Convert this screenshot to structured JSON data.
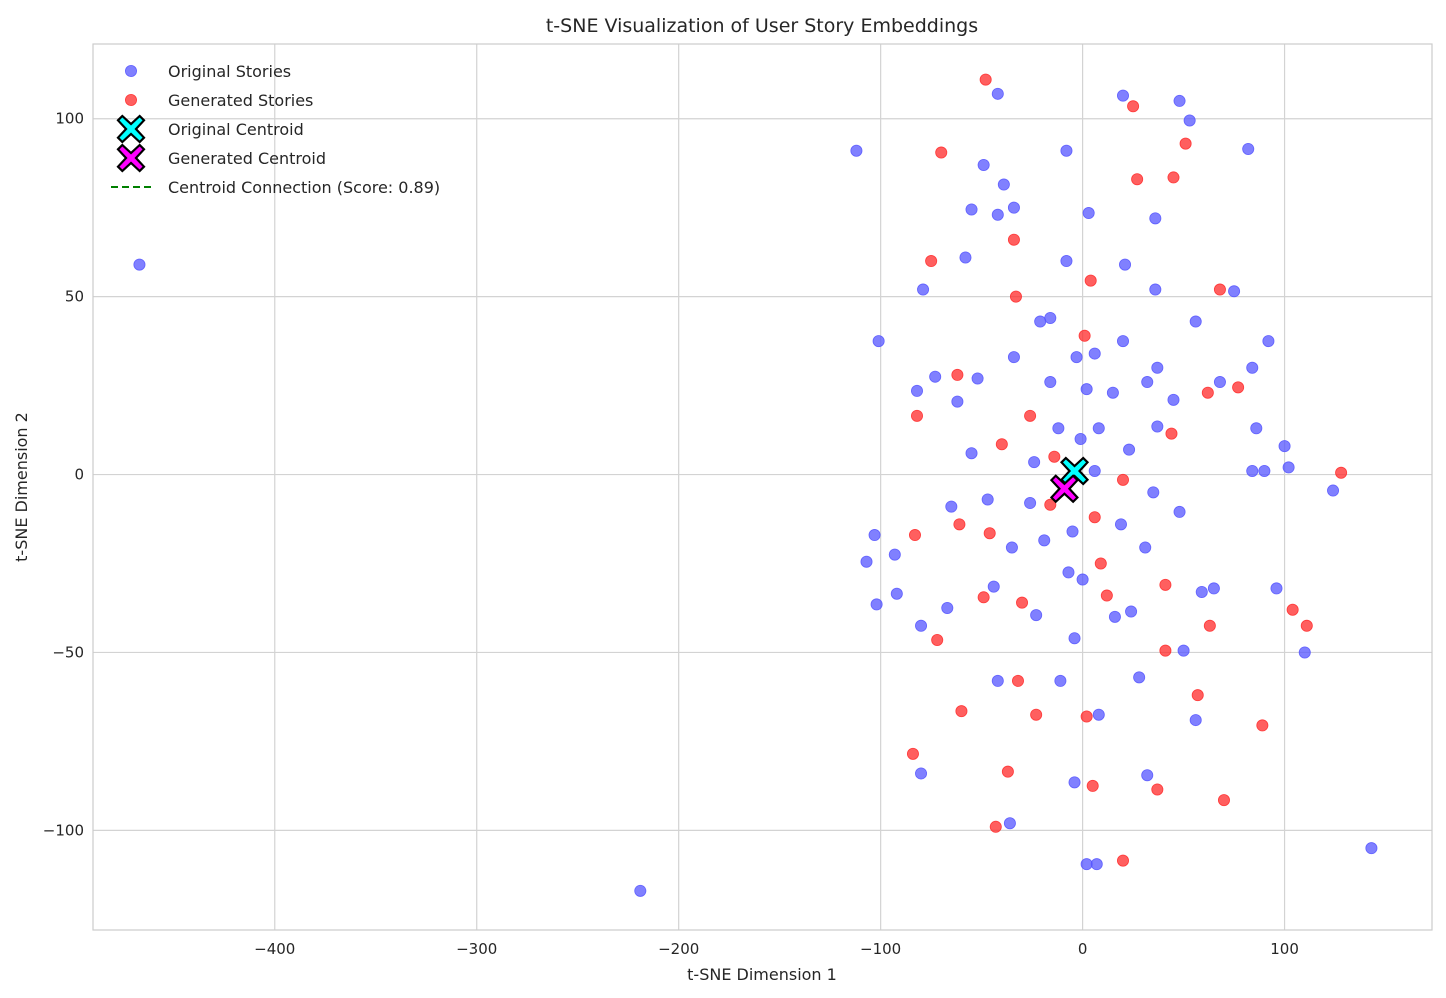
{
  "chart_data": {
    "type": "scatter",
    "title": "t-SNE Visualization of User Story Embeddings",
    "xlabel": "t-SNE Dimension 1",
    "ylabel": "t-SNE Dimension 2",
    "xlim": [
      -490,
      173
    ],
    "ylim": [
      -128,
      121
    ],
    "xticks": [
      -400,
      -300,
      -200,
      -100,
      0,
      100
    ],
    "yticks": [
      -100,
      -50,
      0,
      50,
      100
    ],
    "grid": true,
    "legend_position": "top-left",
    "series": [
      {
        "name": "Original Stories",
        "color": "#5555ff",
        "marker": "circle",
        "points": [
          [
            -467,
            59
          ],
          [
            -219,
            -117
          ],
          [
            -112,
            91
          ],
          [
            -101,
            37.5
          ],
          [
            -103,
            -17
          ],
          [
            -107,
            -24.5
          ],
          [
            -102,
            -36.5
          ],
          [
            -93,
            -22.5
          ],
          [
            -92,
            -33.5
          ],
          [
            -82,
            23.5
          ],
          [
            -79,
            52
          ],
          [
            -80,
            -42.5
          ],
          [
            -80,
            -84
          ],
          [
            -73,
            27.5
          ],
          [
            -67,
            -37.5
          ],
          [
            -65,
            -9
          ],
          [
            -62,
            20.5
          ],
          [
            -58,
            61
          ],
          [
            -55,
            74.5
          ],
          [
            -55,
            6
          ],
          [
            -52,
            27
          ],
          [
            -49,
            87
          ],
          [
            -47,
            -7
          ],
          [
            -44,
            -31.5
          ],
          [
            -42,
            107
          ],
          [
            -42,
            73
          ],
          [
            -42,
            -58
          ],
          [
            -39,
            81.5
          ],
          [
            -36,
            -98
          ],
          [
            -35,
            -20.5
          ],
          [
            -34,
            75
          ],
          [
            -34,
            33
          ],
          [
            -26,
            -8
          ],
          [
            -24,
            3.5
          ],
          [
            -23,
            -39.5
          ],
          [
            -21,
            43
          ],
          [
            -19,
            -18.5
          ],
          [
            -16,
            44
          ],
          [
            -16,
            26
          ],
          [
            -12,
            13
          ],
          [
            -11,
            -58
          ],
          [
            -8,
            91
          ],
          [
            -8,
            60
          ],
          [
            -7,
            -27.5
          ],
          [
            -5,
            -16
          ],
          [
            -4,
            -46
          ],
          [
            -4,
            -86.5
          ],
          [
            -3,
            33
          ],
          [
            -1,
            10
          ],
          [
            0,
            -29.5
          ],
          [
            2,
            24
          ],
          [
            2,
            -109.5
          ],
          [
            3,
            73.5
          ],
          [
            6,
            1
          ],
          [
            6,
            34
          ],
          [
            7,
            -109.5
          ],
          [
            8,
            13
          ],
          [
            8,
            -67.5
          ],
          [
            15,
            23
          ],
          [
            16,
            -40
          ],
          [
            20,
            106.5
          ],
          [
            19,
            -14
          ],
          [
            20,
            37.5
          ],
          [
            21,
            59
          ],
          [
            23,
            7
          ],
          [
            24,
            -38.5
          ],
          [
            28,
            -57
          ],
          [
            31,
            -20.5
          ],
          [
            32,
            26
          ],
          [
            32,
            -84.5
          ],
          [
            35,
            -5
          ],
          [
            36,
            72
          ],
          [
            36,
            52
          ],
          [
            37,
            13.5
          ],
          [
            37,
            30
          ],
          [
            45,
            21
          ],
          [
            48,
            105
          ],
          [
            48,
            -10.5
          ],
          [
            50,
            -49.5
          ],
          [
            53,
            99.5
          ],
          [
            56,
            43
          ],
          [
            56,
            -69
          ],
          [
            59,
            -33
          ],
          [
            65,
            -32
          ],
          [
            68,
            26
          ],
          [
            75,
            51.5
          ],
          [
            82,
            91.5
          ],
          [
            84,
            1
          ],
          [
            84,
            30
          ],
          [
            86,
            13
          ],
          [
            90,
            1
          ],
          [
            92,
            37.5
          ],
          [
            96,
            -32
          ],
          [
            100,
            8
          ],
          [
            102,
            2
          ],
          [
            110,
            -50
          ],
          [
            124,
            -4.5
          ],
          [
            143,
            -105
          ]
        ]
      },
      {
        "name": "Generated Stories",
        "color": "#ff2a2a",
        "marker": "circle",
        "points": [
          [
            -48,
            111
          ],
          [
            -70,
            90.5
          ],
          [
            -75,
            60
          ],
          [
            -82,
            16.5
          ],
          [
            -83,
            -17
          ],
          [
            -84,
            -78.5
          ],
          [
            -72,
            -46.5
          ],
          [
            -62,
            28
          ],
          [
            -61,
            -14
          ],
          [
            -60,
            -66.5
          ],
          [
            -49,
            -34.5
          ],
          [
            -46,
            -16.5
          ],
          [
            -43,
            -99
          ],
          [
            -40,
            8.5
          ],
          [
            -37,
            -83.5
          ],
          [
            -34,
            66
          ],
          [
            -33,
            50
          ],
          [
            -32,
            -58
          ],
          [
            -30,
            -36
          ],
          [
            -26,
            16.5
          ],
          [
            -23,
            -67.5
          ],
          [
            -16,
            -8.5
          ],
          [
            -14,
            5
          ],
          [
            1,
            39
          ],
          [
            2,
            -68
          ],
          [
            4,
            54.5
          ],
          [
            5,
            -87.5
          ],
          [
            6,
            -12
          ],
          [
            9,
            -25
          ],
          [
            12,
            -34
          ],
          [
            20,
            -1.5
          ],
          [
            20,
            -108.5
          ],
          [
            25,
            103.5
          ],
          [
            27,
            83
          ],
          [
            37,
            -88.5
          ],
          [
            41,
            -31
          ],
          [
            41,
            -49.5
          ],
          [
            44,
            11.5
          ],
          [
            45,
            83.5
          ],
          [
            51,
            93
          ],
          [
            57,
            -62
          ],
          [
            62,
            23
          ],
          [
            63,
            -42.5
          ],
          [
            68,
            52
          ],
          [
            70,
            -91.5
          ],
          [
            77,
            24.5
          ],
          [
            89,
            -70.5
          ],
          [
            104,
            -38
          ],
          [
            111,
            -42.5
          ],
          [
            128,
            0.5
          ]
        ]
      },
      {
        "name": "Original Centroid",
        "color": "#00ffff",
        "marker": "X",
        "points": [
          [
            -4,
            1
          ]
        ]
      },
      {
        "name": "Generated Centroid",
        "color": "#ff00ff",
        "marker": "X",
        "points": [
          [
            -9,
            -4
          ]
        ]
      },
      {
        "name": "Centroid Connection (Score: 0.89)",
        "color": "#008000",
        "marker": "dashed-line",
        "points": [
          [
            -4,
            1
          ],
          [
            -9,
            -4
          ]
        ]
      }
    ]
  }
}
